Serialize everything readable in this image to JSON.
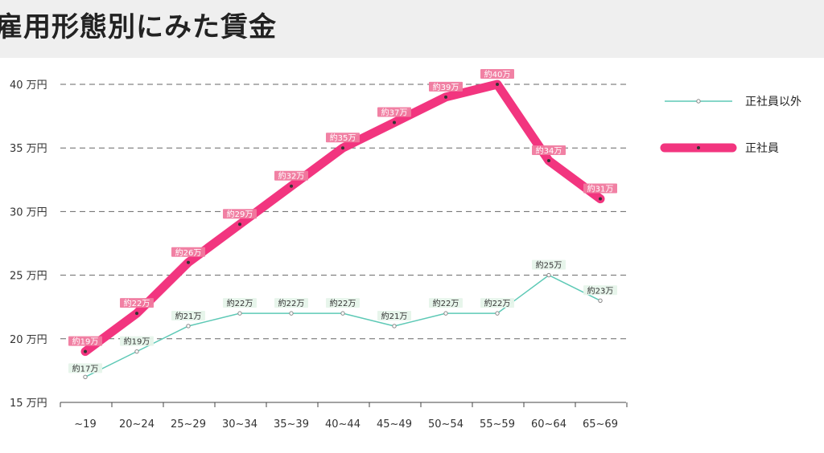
{
  "header": {
    "title": "雇用形態別にみた賃金"
  },
  "chart_data": {
    "type": "line",
    "title": "雇用形態別にみた賃金",
    "categories": [
      "~19",
      "20~24",
      "25~29",
      "30~34",
      "35~39",
      "40~44",
      "45~49",
      "50~54",
      "55~59",
      "60~64",
      "65~69"
    ],
    "y_ticks": [
      {
        "value": 15,
        "label": "15 万円"
      },
      {
        "value": 20,
        "label": "20 万円"
      },
      {
        "value": 25,
        "label": "25 万円"
      },
      {
        "value": 30,
        "label": "30 万円"
      },
      {
        "value": 35,
        "label": "35 万円"
      },
      {
        "value": 40,
        "label": "40 万円"
      }
    ],
    "ylim": [
      15,
      40
    ],
    "grid": "dashed horizontal",
    "legend_position": "right",
    "series": [
      {
        "name": "正社員以外",
        "color": "#5ec9b6",
        "values": [
          17,
          19,
          21,
          22,
          22,
          22,
          21,
          22,
          22,
          25,
          23
        ],
        "labels": [
          "約17万",
          "約19万",
          "約21万",
          "約22万",
          "約22万",
          "約22万",
          "約21万",
          "約22万",
          "約22万",
          "約25万",
          "約23万"
        ]
      },
      {
        "name": "正社員",
        "color": "#f2357f",
        "values": [
          19,
          22,
          26,
          29,
          32,
          35,
          37,
          39,
          40,
          34,
          31
        ],
        "labels": [
          "約19万",
          "約22万",
          "約26万",
          "約29万",
          "約32万",
          "約35万",
          "約37万",
          "約39万",
          "約40万",
          "約34万",
          "約31万"
        ]
      }
    ]
  }
}
